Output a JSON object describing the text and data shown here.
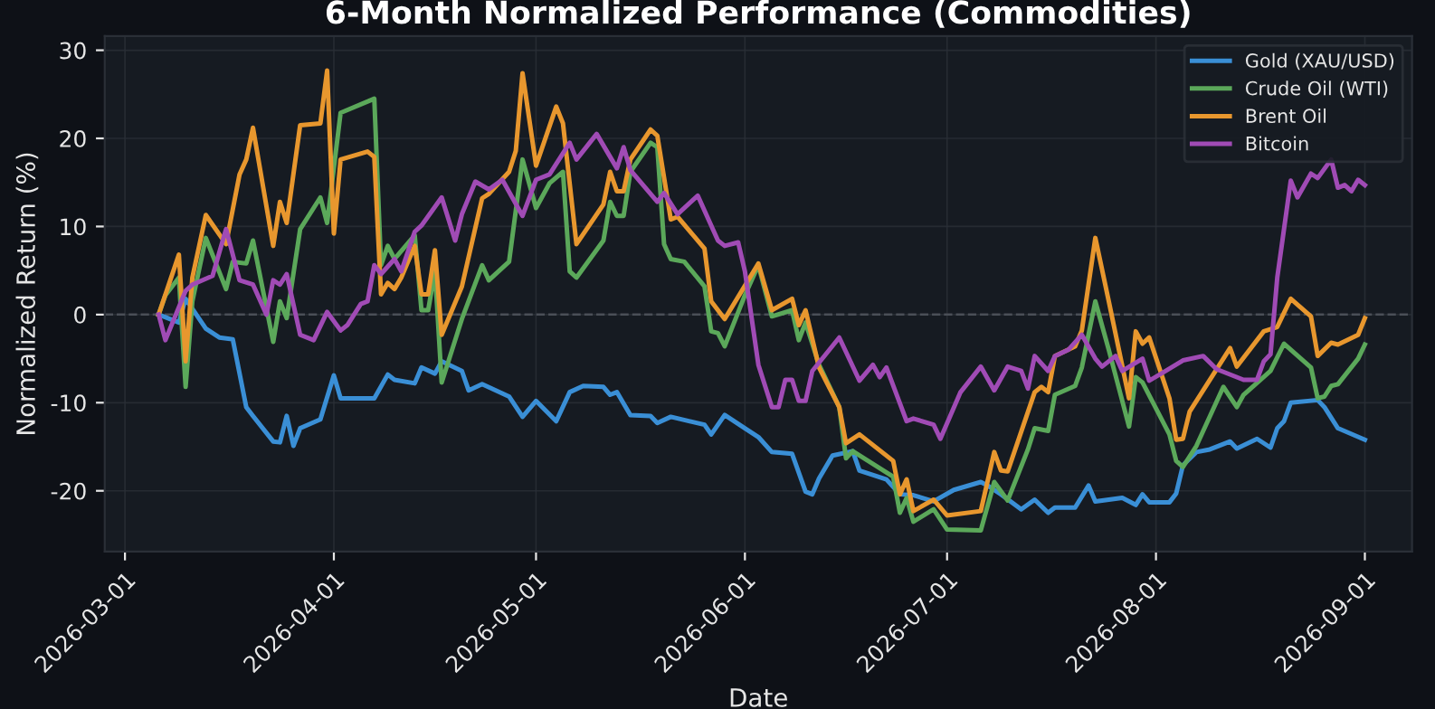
{
  "chart_data": {
    "type": "line",
    "title": "6-Month Normalized Performance (Commodities)",
    "xlabel": "Date",
    "ylabel": "Normalized Return (%)",
    "xlim": [
      "2026-02-26",
      "2026-09-08"
    ],
    "ylim": [
      -26.9,
      31.6
    ],
    "xticks": [
      "2026-03-01",
      "2026-04-01",
      "2026-05-01",
      "2026-06-01",
      "2026-07-01",
      "2026-08-01",
      "2026-09-01"
    ],
    "yticks": [
      -20,
      -10,
      0,
      10,
      20,
      30
    ],
    "grid": true,
    "legend": "top right",
    "marker": "none",
    "line_style": "solid",
    "ref_lines": [
      {
        "axis": "y",
        "value": 0,
        "label": null,
        "color": "#4a4f57",
        "line_style": "dashed"
      }
    ],
    "series": [
      {
        "name": "Gold (XAU/USD)",
        "color": "#3a8fd6",
        "x": [
          "2026-03-06",
          "2026-03-09",
          "2026-03-10",
          "2026-03-13",
          "2026-03-15",
          "2026-03-17",
          "2026-03-19",
          "2026-03-20",
          "2026-03-23",
          "2026-03-24",
          "2026-03-25",
          "2026-03-26",
          "2026-03-27",
          "2026-03-30",
          "2026-04-01",
          "2026-04-02",
          "2026-04-07",
          "2026-04-09",
          "2026-04-10",
          "2026-04-13",
          "2026-04-14",
          "2026-04-16",
          "2026-04-17",
          "2026-04-20",
          "2026-04-21",
          "2026-04-23",
          "2026-04-27",
          "2026-04-29",
          "2026-05-01",
          "2026-05-04",
          "2026-05-06",
          "2026-05-08",
          "2026-05-11",
          "2026-05-12",
          "2026-05-13",
          "2026-05-15",
          "2026-05-18",
          "2026-05-19",
          "2026-05-21",
          "2026-05-26",
          "2026-05-27",
          "2026-05-29",
          "2026-06-01",
          "2026-06-03",
          "2026-06-05",
          "2026-06-08",
          "2026-06-10",
          "2026-06-11",
          "2026-06-12",
          "2026-06-14",
          "2026-06-17",
          "2026-06-18",
          "2026-06-22",
          "2026-06-24",
          "2026-06-26",
          "2026-06-29",
          "2026-07-02",
          "2026-07-06",
          "2026-07-07",
          "2026-07-09",
          "2026-07-12",
          "2026-07-14",
          "2026-07-16",
          "2026-07-17",
          "2026-07-20",
          "2026-07-22",
          "2026-07-23",
          "2026-07-27",
          "2026-07-29",
          "2026-07-30",
          "2026-07-31",
          "2026-08-03",
          "2026-08-04",
          "2026-08-05",
          "2026-08-07",
          "2026-08-09",
          "2026-08-12",
          "2026-08-13",
          "2026-08-16",
          "2026-08-18",
          "2026-08-19",
          "2026-08-20",
          "2026-08-21",
          "2026-08-25",
          "2026-08-26",
          "2026-08-28",
          "2026-09-01"
        ],
        "values": [
          0,
          -0.9,
          1.8,
          -1.6,
          -2.6,
          -2.8,
          -10.5,
          -11.5,
          -14.4,
          -14.5,
          -11.5,
          -14.9,
          -12.9,
          -11.9,
          -6.9,
          -9.5,
          -9.5,
          -6.8,
          -7.4,
          -7.8,
          -6.0,
          -6.7,
          -5.3,
          -6.4,
          -8.6,
          -7.9,
          -9.3,
          -11.6,
          -9.8,
          -12.1,
          -8.8,
          -8.1,
          -8.2,
          -9.1,
          -8.8,
          -11.4,
          -11.5,
          -12.3,
          -11.6,
          -12.5,
          -13.6,
          -11.4,
          -12.9,
          -13.9,
          -15.6,
          -15.8,
          -20.1,
          -20.4,
          -18.6,
          -16,
          -15.5,
          -17.7,
          -18.7,
          -20.4,
          -20.5,
          -21.2,
          -19.9,
          -19.0,
          -19.4,
          -20.4,
          -22.1,
          -21.0,
          -22.5,
          -21.9,
          -21.9,
          -19.4,
          -21.2,
          -20.8,
          -21.6,
          -20.4,
          -21.3,
          -21.3,
          -20.3,
          -17.1,
          -15.6,
          -15.3,
          -14.4,
          -15.2,
          -14.1,
          -15.1,
          -12.9,
          -12.1,
          -10,
          -9.7,
          -10.5,
          -12.9,
          -14.2
        ]
      },
      {
        "name": "Crude Oil (WTI)",
        "color": "#5ba85a",
        "x": [
          "2026-03-06",
          "2026-03-07",
          "2026-03-09",
          "2026-03-10",
          "2026-03-11",
          "2026-03-13",
          "2026-03-16",
          "2026-03-17",
          "2026-03-19",
          "2026-03-20",
          "2026-03-23",
          "2026-03-24",
          "2026-03-25",
          "2026-03-27",
          "2026-03-30",
          "2026-03-31",
          "2026-04-02",
          "2026-04-07",
          "2026-04-08",
          "2026-04-09",
          "2026-04-10",
          "2026-04-13",
          "2026-04-14",
          "2026-04-15",
          "2026-04-16",
          "2026-04-17",
          "2026-04-20",
          "2026-04-23",
          "2026-04-24",
          "2026-04-27",
          "2026-04-29",
          "2026-05-01",
          "2026-05-03",
          "2026-05-05",
          "2026-05-06",
          "2026-05-07",
          "2026-05-11",
          "2026-05-12",
          "2026-05-13",
          "2026-05-14",
          "2026-05-15",
          "2026-05-18",
          "2026-05-19",
          "2026-05-20",
          "2026-05-21",
          "2026-05-23",
          "2026-05-26",
          "2026-05-27",
          "2026-05-28",
          "2026-05-29",
          "2026-06-01",
          "2026-06-03",
          "2026-06-05",
          "2026-06-08",
          "2026-06-09",
          "2026-06-10",
          "2026-06-12",
          "2026-06-15",
          "2026-06-16",
          "2026-06-17",
          "2026-06-23",
          "2026-06-24",
          "2026-06-25",
          "2026-06-26",
          "2026-06-29",
          "2026-07-01",
          "2026-07-06",
          "2026-07-08",
          "2026-07-10",
          "2026-07-13",
          "2026-07-14",
          "2026-07-16",
          "2026-07-17",
          "2026-07-20",
          "2026-07-21",
          "2026-07-23",
          "2026-07-25",
          "2026-07-28",
          "2026-07-29",
          "2026-07-30",
          "2026-08-03",
          "2026-08-04",
          "2026-08-05",
          "2026-08-07",
          "2026-08-11",
          "2026-08-13",
          "2026-08-14",
          "2026-08-18",
          "2026-08-20",
          "2026-08-24",
          "2026-08-25",
          "2026-08-26",
          "2026-08-27",
          "2026-08-28",
          "2026-08-31",
          "2026-09-01"
        ],
        "values": [
          0,
          2.2,
          4.2,
          -8.2,
          1.5,
          8.7,
          2.9,
          6,
          5.8,
          8.4,
          -3.1,
          1.5,
          -0.4,
          9.7,
          13.3,
          10.4,
          22.9,
          24.5,
          5.6,
          7.8,
          6.3,
          9,
          0.5,
          0.5,
          5,
          -7.7,
          -0.5,
          5.6,
          3.9,
          6,
          17.6,
          12.1,
          14.9,
          16.2,
          4.9,
          4.2,
          8.4,
          12.8,
          11.2,
          11.2,
          16.2,
          19.5,
          19,
          8,
          6.3,
          6,
          3.2,
          -1.9,
          -2.1,
          -3.6,
          2.2,
          5.6,
          -0.2,
          0.5,
          -2.9,
          -0.9,
          -5.7,
          -10.5,
          -16.3,
          -15.5,
          -18.4,
          -22.5,
          -20.8,
          -23.5,
          -22.1,
          -24.4,
          -24.5,
          -19,
          -21.1,
          -15.3,
          -12.9,
          -13.2,
          -9.1,
          -8.1,
          -6,
          1.5,
          -4,
          -12.7,
          -7.1,
          -7.7,
          -13.6,
          -16.6,
          -17.3,
          -14.9,
          -8.2,
          -10.5,
          -9.1,
          -6.4,
          -3.3,
          -6,
          -9.5,
          -9.3,
          -8.1,
          -7.9,
          -5,
          -3.4
        ]
      },
      {
        "name": "Brent Oil",
        "color": "#e8972e",
        "x": [
          "2026-03-06",
          "2026-03-09",
          "2026-03-10",
          "2026-03-11",
          "2026-03-13",
          "2026-03-16",
          "2026-03-18",
          "2026-03-19",
          "2026-03-20",
          "2026-03-23",
          "2026-03-24",
          "2026-03-25",
          "2026-03-27",
          "2026-03-30",
          "2026-03-31",
          "2026-04-01",
          "2026-04-02",
          "2026-04-06",
          "2026-04-07",
          "2026-04-08",
          "2026-04-09",
          "2026-04-10",
          "2026-04-11",
          "2026-04-13",
          "2026-04-14",
          "2026-04-15",
          "2026-04-16",
          "2026-04-17",
          "2026-04-20",
          "2026-04-23",
          "2026-04-24",
          "2026-04-27",
          "2026-04-28",
          "2026-04-29",
          "2026-05-01",
          "2026-05-04",
          "2026-05-05",
          "2026-05-07",
          "2026-05-11",
          "2026-05-12",
          "2026-05-13",
          "2026-05-14",
          "2026-05-15",
          "2026-05-18",
          "2026-05-19",
          "2026-05-21",
          "2026-05-22",
          "2026-05-26",
          "2026-05-27",
          "2026-05-29",
          "2026-06-03",
          "2026-06-05",
          "2026-06-08",
          "2026-06-09",
          "2026-06-10",
          "2026-06-12",
          "2026-06-15",
          "2026-06-16",
          "2026-06-18",
          "2026-06-23",
          "2026-06-24",
          "2026-06-25",
          "2026-06-26",
          "2026-06-29",
          "2026-07-01",
          "2026-07-06",
          "2026-07-08",
          "2026-07-09",
          "2026-07-10",
          "2026-07-14",
          "2026-07-15",
          "2026-07-16",
          "2026-07-17",
          "2026-07-20",
          "2026-07-21",
          "2026-07-23",
          "2026-07-25",
          "2026-07-28",
          "2026-07-29",
          "2026-07-30",
          "2026-07-31",
          "2026-08-03",
          "2026-08-04",
          "2026-08-05",
          "2026-08-06",
          "2026-08-12",
          "2026-08-13",
          "2026-08-17",
          "2026-08-19",
          "2026-08-21",
          "2026-08-24",
          "2026-08-25",
          "2026-08-27",
          "2026-08-28",
          "2026-08-31",
          "2026-09-01"
        ],
        "values": [
          0,
          6.8,
          -5.3,
          4.2,
          11.3,
          8,
          15.9,
          17.6,
          21.2,
          7.8,
          12.8,
          10.4,
          21.5,
          21.7,
          27.7,
          9.2,
          17.6,
          18.5,
          17.9,
          2.3,
          3.6,
          2.9,
          4.2,
          7.8,
          2.3,
          2.3,
          7.3,
          -2.3,
          3.2,
          13.2,
          13.7,
          16.2,
          18.6,
          27.4,
          16.9,
          23.6,
          21.7,
          8,
          12.5,
          16.2,
          14,
          14,
          17.6,
          21,
          20.3,
          10.8,
          11.1,
          7.5,
          1.5,
          -0.5,
          5.8,
          0.5,
          1.8,
          -1.2,
          0.5,
          -6,
          -10.5,
          -14.6,
          -13.6,
          -16.6,
          -20.4,
          -18.7,
          -22.3,
          -21,
          -22.8,
          -22.3,
          -15.6,
          -17.7,
          -17.8,
          -8.8,
          -8.2,
          -8.8,
          -4.7,
          -3.6,
          -1.8,
          8.7,
          1.5,
          -9.5,
          -1.9,
          -3.3,
          -2.6,
          -9.5,
          -14.2,
          -14.1,
          -11,
          -3.8,
          -5.9,
          -1.9,
          -1.4,
          1.8,
          -0.2,
          -4.7,
          -3.2,
          -3.4,
          -2.3,
          -0.4
        ]
      },
      {
        "name": "Bitcoin",
        "color": "#a04bb5",
        "x": [
          "2026-03-06",
          "2026-03-07",
          "2026-03-10",
          "2026-03-11",
          "2026-03-14",
          "2026-03-16",
          "2026-03-18",
          "2026-03-20",
          "2026-03-22",
          "2026-03-23",
          "2026-03-24",
          "2026-03-25",
          "2026-03-27",
          "2026-03-29",
          "2026-03-31",
          "2026-04-02",
          "2026-04-03",
          "2026-04-05",
          "2026-04-06",
          "2026-04-07",
          "2026-04-08",
          "2026-04-10",
          "2026-04-11",
          "2026-04-13",
          "2026-04-14",
          "2026-04-17",
          "2026-04-19",
          "2026-04-20",
          "2026-04-22",
          "2026-04-24",
          "2026-04-26",
          "2026-04-29",
          "2026-05-01",
          "2026-05-03",
          "2026-05-06",
          "2026-05-07",
          "2026-05-10",
          "2026-05-13",
          "2026-05-14",
          "2026-05-15",
          "2026-05-19",
          "2026-05-20",
          "2026-05-22",
          "2026-05-25",
          "2026-05-28",
          "2026-05-29",
          "2026-05-31",
          "2026-06-01",
          "2026-06-03",
          "2026-06-05",
          "2026-06-06",
          "2026-06-07",
          "2026-06-08",
          "2026-06-09",
          "2026-06-10",
          "2026-06-11",
          "2026-06-15",
          "2026-06-18",
          "2026-06-20",
          "2026-06-21",
          "2026-06-22",
          "2026-06-25",
          "2026-06-26",
          "2026-06-29",
          "2026-06-30",
          "2026-07-03",
          "2026-07-06",
          "2026-07-08",
          "2026-07-10",
          "2026-07-12",
          "2026-07-13",
          "2026-07-14",
          "2026-07-16",
          "2026-07-17",
          "2026-07-19",
          "2026-07-21",
          "2026-07-23",
          "2026-07-24",
          "2026-07-26",
          "2026-07-27",
          "2026-07-30",
          "2026-07-31",
          "2026-08-02",
          "2026-08-05",
          "2026-08-08",
          "2026-08-10",
          "2026-08-14",
          "2026-08-16",
          "2026-08-17",
          "2026-08-18",
          "2026-08-19",
          "2026-08-21",
          "2026-08-22",
          "2026-08-24",
          "2026-08-25",
          "2026-08-27",
          "2026-08-28",
          "2026-08-29",
          "2026-08-30",
          "2026-08-31",
          "2026-09-01"
        ],
        "values": [
          0,
          -2.9,
          2.7,
          3.4,
          4.4,
          9.7,
          3.9,
          3.4,
          0,
          3.9,
          3.4,
          4.6,
          -2.3,
          -2.9,
          0.3,
          -1.8,
          -1.2,
          1.2,
          1.5,
          5.6,
          4.6,
          6.3,
          4.9,
          9.4,
          10.1,
          13.3,
          8.4,
          11.4,
          15.1,
          14.2,
          15.3,
          11.2,
          15.3,
          15.9,
          19.5,
          17.6,
          20.5,
          16.6,
          19,
          16.4,
          12.8,
          13.8,
          11.4,
          13.5,
          8.4,
          7.8,
          8.2,
          4.9,
          -5.7,
          -10.5,
          -10.5,
          -7.4,
          -7.4,
          -9.8,
          -9.8,
          -6.4,
          -2.6,
          -7.5,
          -5.7,
          -7.1,
          -6,
          -12.1,
          -11.8,
          -12.5,
          -14.1,
          -8.8,
          -5.9,
          -8.6,
          -5.9,
          -6.4,
          -8.4,
          -4.7,
          -6.4,
          -4.7,
          -4,
          -2.3,
          -5,
          -5.9,
          -4.7,
          -6.4,
          -5,
          -7.5,
          -6.6,
          -5.2,
          -4.7,
          -6.2,
          -7.4,
          -7.4,
          -5.3,
          -4.5,
          4.2,
          15.2,
          13.3,
          16,
          15.5,
          17.6,
          14.4,
          14.7,
          14,
          15.3,
          14.7
        ]
      }
    ]
  }
}
